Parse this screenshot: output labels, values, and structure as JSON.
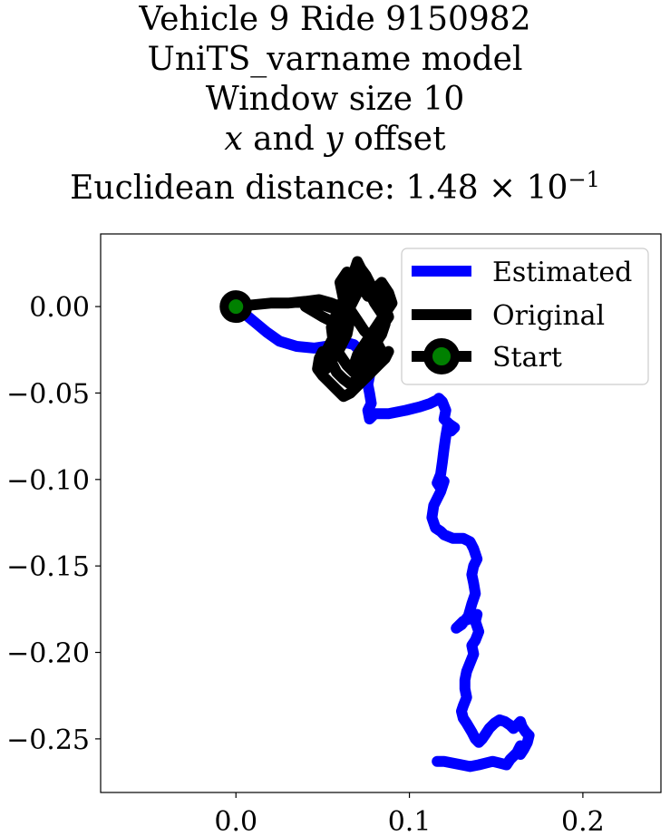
{
  "chart_data": {
    "type": "line",
    "title": {
      "line1": "Vehicle 9 Ride 9150982",
      "line2": "UniTS_varname model",
      "line3": "Window size 10",
      "line4_var1": "x",
      "line4_mid": " and ",
      "line4_var2": "y",
      "line4_end": " offset",
      "line5_prefix": "Euclidean distance: ",
      "line5_value": "1.48 × 10",
      "line5_exp": "−1"
    },
    "xlabel": "",
    "ylabel": "",
    "xlim": [
      -0.078,
      0.245
    ],
    "ylim": [
      -0.281,
      0.042
    ],
    "x_ticks": [
      {
        "value": 0.0,
        "label": "0.0"
      },
      {
        "value": 0.1,
        "label": "0.1"
      },
      {
        "value": 0.2,
        "label": "0.2"
      }
    ],
    "y_ticks": [
      {
        "value": 0.0,
        "label": "0.00"
      },
      {
        "value": -0.05,
        "label": "−0.05"
      },
      {
        "value": -0.1,
        "label": "−0.10"
      },
      {
        "value": -0.15,
        "label": "−0.15"
      },
      {
        "value": -0.2,
        "label": "−0.20"
      },
      {
        "value": -0.25,
        "label": "−0.25"
      }
    ],
    "grid": false,
    "legend_position": "top-right",
    "series": [
      {
        "name": "Estimated",
        "color": "#0000ff",
        "x": [
          0.0,
          0.006,
          0.012,
          0.018,
          0.025,
          0.035,
          0.045,
          0.052,
          0.056,
          0.06,
          0.064,
          0.068,
          0.07,
          0.072,
          0.074,
          0.076,
          0.077,
          0.076,
          0.077,
          0.078,
          0.076,
          0.077,
          0.08,
          0.088,
          0.098,
          0.106,
          0.112,
          0.116,
          0.117,
          0.119,
          0.121,
          0.12,
          0.123,
          0.126,
          0.124,
          0.122,
          0.121,
          0.12,
          0.119,
          0.118,
          0.116,
          0.118,
          0.12,
          0.118,
          0.116,
          0.114,
          0.113,
          0.115,
          0.118,
          0.12,
          0.125,
          0.131,
          0.135,
          0.137,
          0.138,
          0.139,
          0.137,
          0.136,
          0.137,
          0.138,
          0.136,
          0.134,
          0.13,
          0.127,
          0.131,
          0.136,
          0.139,
          0.138,
          0.14,
          0.138,
          0.136,
          0.137,
          0.135,
          0.133,
          0.132,
          0.132,
          0.133,
          0.131,
          0.13,
          0.131,
          0.133,
          0.136,
          0.138,
          0.14,
          0.142,
          0.144,
          0.146,
          0.149,
          0.152,
          0.155,
          0.158,
          0.16,
          0.162,
          0.164,
          0.165,
          0.167,
          0.169,
          0.168,
          0.166,
          0.164,
          0.163,
          0.164,
          0.162,
          0.158,
          0.156,
          0.152,
          0.148,
          0.144,
          0.14,
          0.135,
          0.13,
          0.125,
          0.12,
          0.116
        ],
        "y": [
          0.0,
          -0.005,
          -0.01,
          -0.015,
          -0.02,
          -0.023,
          -0.024,
          -0.023,
          -0.023,
          -0.022,
          -0.021,
          -0.022,
          -0.024,
          -0.026,
          -0.03,
          -0.035,
          -0.04,
          -0.045,
          -0.05,
          -0.056,
          -0.06,
          -0.065,
          -0.062,
          -0.062,
          -0.06,
          -0.058,
          -0.056,
          -0.054,
          -0.053,
          -0.055,
          -0.06,
          -0.065,
          -0.068,
          -0.07,
          -0.072,
          -0.069,
          -0.075,
          -0.082,
          -0.09,
          -0.097,
          -0.102,
          -0.105,
          -0.101,
          -0.107,
          -0.111,
          -0.115,
          -0.122,
          -0.128,
          -0.13,
          -0.132,
          -0.134,
          -0.134,
          -0.136,
          -0.14,
          -0.143,
          -0.146,
          -0.15,
          -0.155,
          -0.16,
          -0.166,
          -0.172,
          -0.179,
          -0.184,
          -0.186,
          -0.182,
          -0.18,
          -0.178,
          -0.182,
          -0.188,
          -0.193,
          -0.196,
          -0.201,
          -0.206,
          -0.211,
          -0.216,
          -0.221,
          -0.226,
          -0.231,
          -0.234,
          -0.238,
          -0.241,
          -0.246,
          -0.25,
          -0.252,
          -0.25,
          -0.247,
          -0.244,
          -0.241,
          -0.239,
          -0.24,
          -0.242,
          -0.244,
          -0.242,
          -0.24,
          -0.243,
          -0.246,
          -0.248,
          -0.252,
          -0.256,
          -0.259,
          -0.258,
          -0.254,
          -0.258,
          -0.262,
          -0.265,
          -0.264,
          -0.263,
          -0.264,
          -0.265,
          -0.266,
          -0.265,
          -0.264,
          -0.263,
          -0.263
        ]
      },
      {
        "name": "Original",
        "color": "#000000",
        "x": [
          0.0,
          0.01,
          0.02,
          0.03,
          0.04,
          0.048,
          0.055,
          0.06,
          0.062,
          0.056,
          0.05,
          0.045,
          0.04,
          0.05,
          0.058,
          0.064,
          0.066,
          0.062,
          0.065,
          0.068,
          0.07,
          0.072,
          0.07,
          0.066,
          0.062,
          0.058,
          0.055,
          0.052,
          0.05,
          0.048,
          0.052,
          0.056,
          0.06,
          0.064,
          0.066,
          0.062,
          0.06,
          0.064,
          0.068,
          0.072,
          0.076,
          0.08,
          0.084,
          0.088,
          0.09,
          0.086,
          0.082,
          0.078,
          0.074,
          0.07,
          0.068,
          0.072,
          0.076,
          0.08,
          0.084,
          0.088,
          0.086,
          0.082,
          0.078,
          0.075,
          0.072,
          0.07,
          0.068,
          0.065,
          0.062,
          0.058,
          0.055,
          0.056,
          0.06,
          0.064,
          0.068,
          0.072,
          0.076,
          0.08,
          0.084,
          0.086,
          0.084,
          0.08,
          0.077,
          0.074,
          0.07,
          0.067,
          0.064,
          0.062,
          0.066,
          0.07,
          0.074,
          0.078,
          0.082,
          0.084,
          0.082,
          0.078,
          0.074,
          0.07,
          0.066,
          0.062,
          0.058,
          0.055,
          0.052,
          0.05,
          0.048,
          0.047,
          0.05,
          0.054,
          0.058,
          0.062,
          0.066,
          0.07,
          0.074,
          0.078,
          0.082,
          0.086,
          0.088,
          0.084,
          0.08
        ],
        "y": [
          0.0,
          0.001,
          0.002,
          0.002,
          0.003,
          0.004,
          0.002,
          0.0,
          -0.004,
          -0.001,
          0.001,
          0.002,
          0.0,
          -0.006,
          -0.01,
          -0.012,
          -0.005,
          0.004,
          0.012,
          0.02,
          0.024,
          0.015,
          0.008,
          0.0,
          -0.008,
          -0.015,
          -0.02,
          -0.026,
          -0.03,
          -0.034,
          -0.036,
          -0.03,
          -0.024,
          -0.016,
          -0.006,
          0.004,
          0.014,
          0.02,
          0.018,
          0.012,
          0.006,
          0.01,
          0.014,
          0.008,
          0.002,
          -0.004,
          -0.01,
          -0.016,
          -0.022,
          -0.028,
          -0.034,
          -0.03,
          -0.024,
          -0.018,
          -0.012,
          -0.006,
          0.0,
          0.006,
          0.012,
          0.018,
          0.022,
          0.026,
          0.02,
          0.012,
          0.004,
          -0.004,
          -0.012,
          -0.02,
          -0.028,
          -0.034,
          -0.038,
          -0.034,
          -0.028,
          -0.022,
          -0.016,
          -0.01,
          -0.004,
          0.002,
          0.008,
          0.014,
          0.02,
          0.016,
          0.01,
          0.004,
          -0.002,
          -0.008,
          -0.014,
          -0.018,
          -0.022,
          -0.026,
          -0.03,
          -0.034,
          -0.038,
          -0.042,
          -0.045,
          -0.042,
          -0.038,
          -0.032,
          -0.028,
          -0.026,
          -0.03,
          -0.036,
          -0.04,
          -0.044,
          -0.048,
          -0.052,
          -0.05,
          -0.046,
          -0.042,
          -0.038,
          -0.034,
          -0.03,
          -0.026,
          -0.028,
          -0.032
        ]
      },
      {
        "name": "Start",
        "color": "#000000",
        "marker_face": "#008000",
        "x": [
          0.0
        ],
        "y": [
          0.0
        ]
      }
    ]
  }
}
